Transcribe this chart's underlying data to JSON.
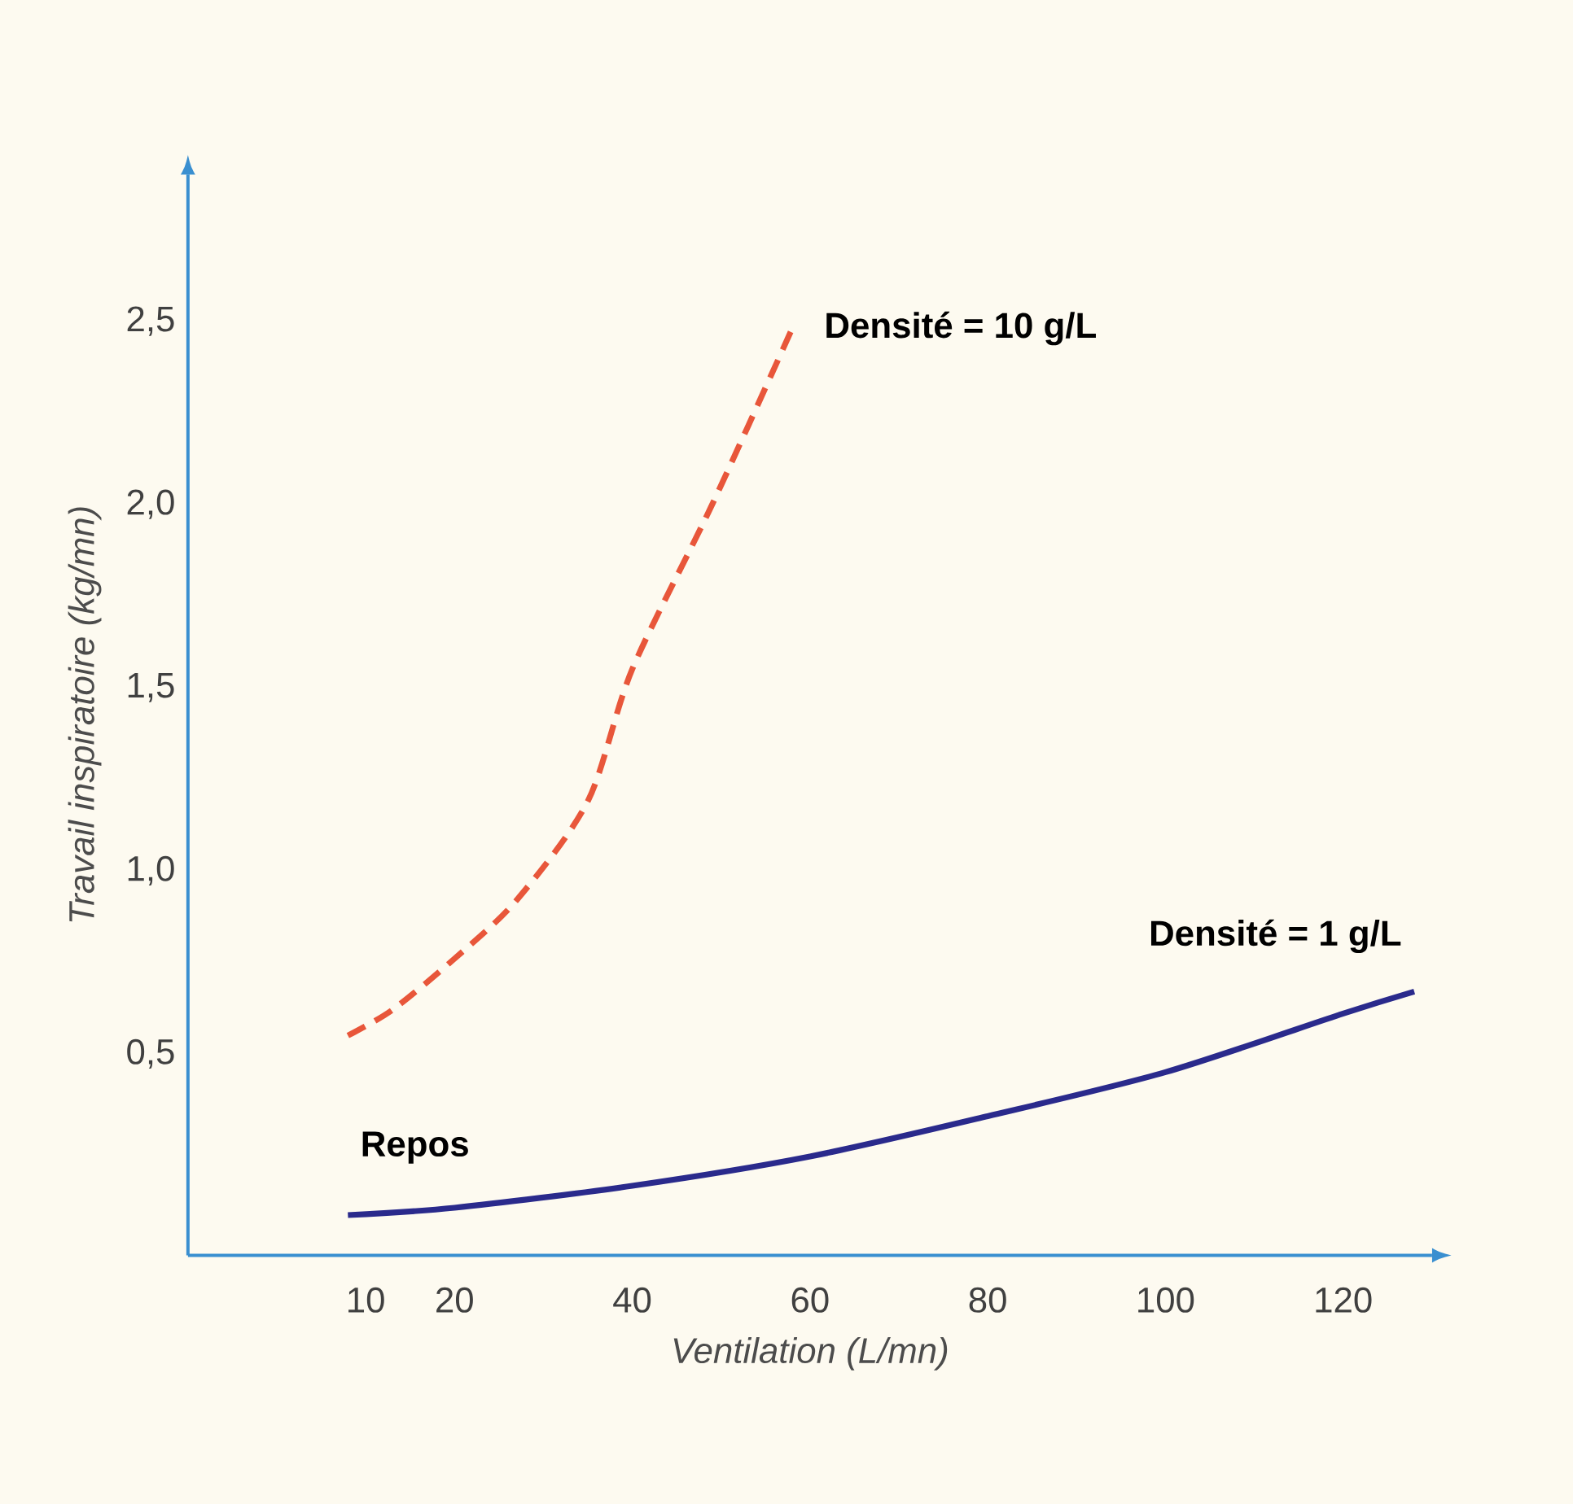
{
  "chart_data": {
    "type": "line",
    "xlabel": "Ventilation (L/mn)",
    "ylabel": "Travail inspiratoire (kg/mn)",
    "xlim": [
      -10,
      130
    ],
    "ylim": [
      -0.05,
      2.9
    ],
    "xticks": [
      10,
      20,
      40,
      60,
      80,
      100,
      120
    ],
    "yticks": [
      {
        "value": 0.5,
        "label": "0,5"
      },
      {
        "value": 1.0,
        "label": "1,0"
      },
      {
        "value": 1.5,
        "label": "1,5"
      },
      {
        "value": 2.0,
        "label": "2,0"
      },
      {
        "value": 2.5,
        "label": "2,5"
      }
    ],
    "series": [
      {
        "name": "Densité = 10 g/L",
        "color": "#e8563a",
        "line_style": "dashed",
        "x": [
          8,
          13,
          20,
          27,
          35,
          40,
          49,
          58
        ],
        "values": [
          0.55,
          0.62,
          0.76,
          0.92,
          1.19,
          1.55,
          2.0,
          2.48
        ]
      },
      {
        "name": "Densité = 1 g/L",
        "color": "#2a2a8c",
        "line_style": "solid",
        "x": [
          8,
          20,
          40,
          60,
          80,
          100,
          120,
          128
        ],
        "values": [
          0.06,
          0.08,
          0.14,
          0.22,
          0.33,
          0.45,
          0.61,
          0.67
        ]
      }
    ],
    "annotations": [
      {
        "text": "Repos",
        "x": 8,
        "y": 0.06
      }
    ],
    "grid": false,
    "legend": false,
    "marker": "none"
  }
}
